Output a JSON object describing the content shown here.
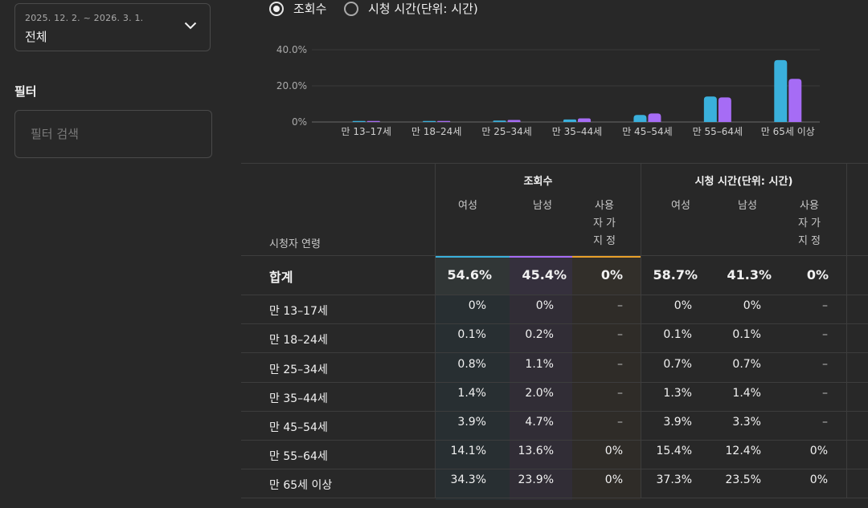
{
  "date_filter": {
    "range": "2025. 12. 2. ~ 2026. 3. 1.",
    "value": "전체"
  },
  "filter": {
    "label": "필터",
    "placeholder": "필터 검색"
  },
  "metric_toggle": {
    "options": [
      {
        "label": "조회수",
        "selected": true
      },
      {
        "label": "시청 시간(단위: 시간)",
        "selected": false
      }
    ]
  },
  "colors": {
    "female": "#3ab0dc",
    "male": "#a66cf5",
    "unspecified": "#e8a02a",
    "background": "#282828"
  },
  "chart_data": {
    "type": "bar",
    "categories": [
      "만 13–17세",
      "만 18–24세",
      "만 25–34세",
      "만 35–44세",
      "만 45–54세",
      "만 55–64세",
      "만 65세 이상"
    ],
    "series": [
      {
        "values": [
          0,
          0.1,
          0.8,
          1.4,
          3.9,
          14.1,
          34.3
        ]
      },
      {
        "values": [
          0,
          0.2,
          1.1,
          2.0,
          4.7,
          13.6,
          23.9
        ]
      }
    ],
    "y_ticks": [
      "40.0%",
      "20.0%",
      "0%"
    ],
    "ylim": [
      0,
      40
    ],
    "grid": true
  },
  "table": {
    "row_header": "시청자 연령",
    "groups": [
      {
        "title": "조회수",
        "subs": [
          "여성",
          "남성",
          "사용자 가 지 정"
        ]
      },
      {
        "title": "시청 시간(단위: 시간)",
        "subs": [
          "여성",
          "남성",
          "사용자 가 지 정"
        ]
      }
    ],
    "total": {
      "label": "합계",
      "values": [
        "54.6%",
        "45.4%",
        "0%",
        "58.7%",
        "41.3%",
        "0%"
      ]
    },
    "rows": [
      {
        "label": "만 13–17세",
        "values": [
          "0%",
          "0%",
          "–",
          "0%",
          "0%",
          "–"
        ]
      },
      {
        "label": "만 18–24세",
        "values": [
          "0.1%",
          "0.2%",
          "–",
          "0.1%",
          "0.1%",
          "–"
        ]
      },
      {
        "label": "만 25–34세",
        "values": [
          "0.8%",
          "1.1%",
          "–",
          "0.7%",
          "0.7%",
          "–"
        ]
      },
      {
        "label": "만 35–44세",
        "values": [
          "1.4%",
          "2.0%",
          "–",
          "1.3%",
          "1.4%",
          "–"
        ]
      },
      {
        "label": "만 45–54세",
        "values": [
          "3.9%",
          "4.7%",
          "–",
          "3.9%",
          "3.3%",
          "–"
        ]
      },
      {
        "label": "만 55–64세",
        "values": [
          "14.1%",
          "13.6%",
          "0%",
          "15.4%",
          "12.4%",
          "0%"
        ]
      },
      {
        "label": "만 65세 이상",
        "values": [
          "34.3%",
          "23.9%",
          "0%",
          "37.3%",
          "23.5%",
          "0%"
        ]
      }
    ]
  }
}
